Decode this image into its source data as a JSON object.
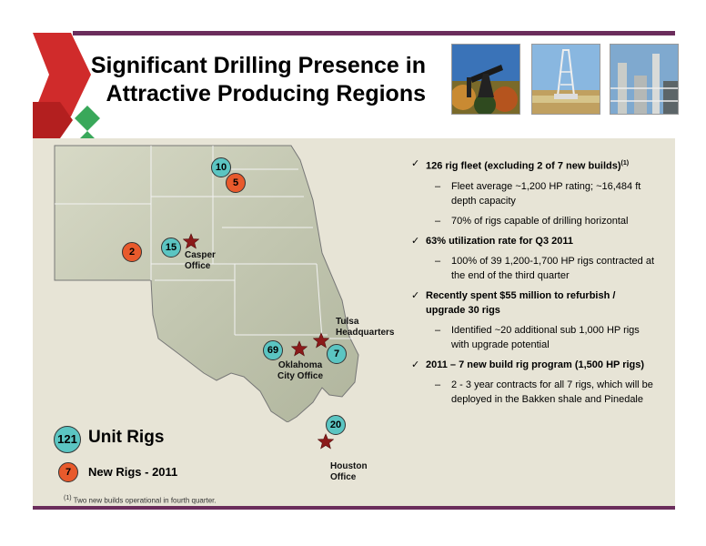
{
  "title": {
    "line1": "Significant Drilling Presence in",
    "line2": "Attractive Producing Regions"
  },
  "photos": [
    {
      "icon": "pumpjack-photo",
      "colors": [
        "#3a73b8",
        "#c98a32",
        "#2f4a1f"
      ]
    },
    {
      "icon": "drilling-rig-photo",
      "colors": [
        "#89b7e0",
        "#d6c48a",
        "#c0a060"
      ]
    },
    {
      "icon": "refinery-photo",
      "colors": [
        "#7fa9cf",
        "#c9ccc8",
        "#5c6568"
      ]
    }
  ],
  "map": {
    "markers": [
      {
        "value": "10",
        "type": "unit"
      },
      {
        "value": "5",
        "type": "new"
      },
      {
        "value": "15",
        "type": "unit"
      },
      {
        "value": "2",
        "type": "new"
      },
      {
        "value": "69",
        "type": "unit"
      },
      {
        "value": "7",
        "type": "unit"
      },
      {
        "value": "20",
        "type": "unit"
      }
    ],
    "offices": {
      "casper": "Casper\nOffice",
      "tulsa": "Tulsa\nHeadquarters",
      "okc": "Oklahoma\nCity Office",
      "houston": "Houston\nOffice"
    }
  },
  "legend": {
    "unit_count": "121",
    "unit_label": "Unit Rigs",
    "new_count": "7",
    "new_label": "New Rigs - 2011"
  },
  "bullets": {
    "b1": "126 rig fleet (excluding 2 of 7 new builds)",
    "b1_sup": "(1)",
    "b1_s1": "Fleet average ~1,200 HP rating; ~16,484 ft depth capacity",
    "b1_s2": "70% of rigs capable of drilling horizontal",
    "b2": "63%  utilization rate for Q3 2011",
    "b2_s1": "100% of 39 1,200-1,700 HP rigs contracted at the end of the third quarter",
    "b3": "Recently spent $55 million to refurbish / upgrade 30 rigs",
    "b3_s1": "Identified ~20 additional sub 1,000 HP rigs with upgrade potential",
    "b4": "2011 – 7 new build rig program (1,500 HP rigs)",
    "b4_s1": "2 - 3 year contracts for all 7 rigs, which will be deployed in the Bakken shale and Pinedale"
  },
  "footnote": {
    "sup": "(1)",
    "text": " Two new builds operational in fourth quarter."
  },
  "colors": {
    "accent_purple": "#6b2d5c",
    "arrow_red": "#d02b2b",
    "arrow_green": "#39a85a",
    "marker_teal": "#5bc5c2",
    "marker_red": "#e85a2c",
    "star": "#8b1a1a"
  }
}
